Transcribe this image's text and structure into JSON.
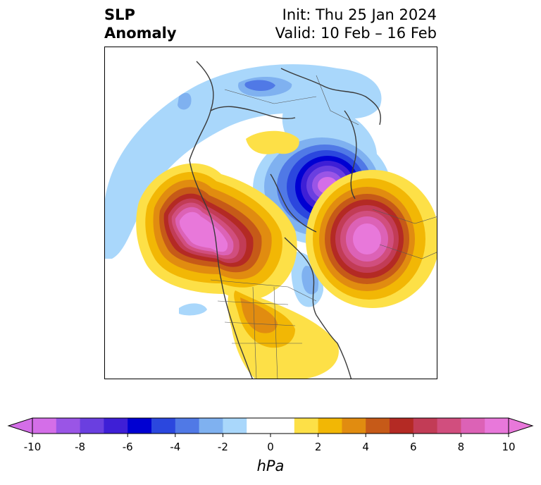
{
  "title": {
    "left_line1": "SLP",
    "left_line2": "Anomaly",
    "right_line1": "Init: Thu 25 Jan 2024",
    "right_line2": "Valid: 10 Feb – 16 Feb"
  },
  "colorbar": {
    "unit": "hPa",
    "min": -10,
    "max": 10,
    "step": 1,
    "extend": "both",
    "ticks": [
      -10,
      -8,
      -6,
      -4,
      -2,
      0,
      2,
      4,
      6,
      8,
      10
    ],
    "tick_labels": [
      "-10",
      "-8",
      "-6",
      "-4",
      "-2",
      "0",
      "2",
      "4",
      "6",
      "8",
      "10"
    ],
    "colors": [
      "#d46ee8",
      "#9a55e6",
      "#6a3fe0",
      "#3e1fd6",
      "#0000d2",
      "#2b47de",
      "#5079e6",
      "#7fb1f0",
      "#a9d7fb",
      "#ffffff",
      "#ffffff",
      "#fde047",
      "#f2b705",
      "#e18c10",
      "#c65a18",
      "#b42a24",
      "#c23c56",
      "#d14e7e",
      "#dc62b6",
      "#e878da"
    ]
  },
  "map": {
    "projection": "polar-stereographic",
    "region": "Northern Hemisphere",
    "anomalies": [
      {
        "name": "negative-anomaly-arctic-greenland",
        "sign": "negative",
        "peak_hpa": -10
      },
      {
        "name": "positive-anomaly-north-pacific",
        "sign": "positive",
        "peak_hpa": 10
      },
      {
        "name": "positive-anomaly-western-europe",
        "sign": "positive",
        "peak_hpa": 10
      },
      {
        "name": "positive-anomaly-eastern-usa",
        "sign": "positive",
        "peak_hpa": 3
      }
    ]
  }
}
